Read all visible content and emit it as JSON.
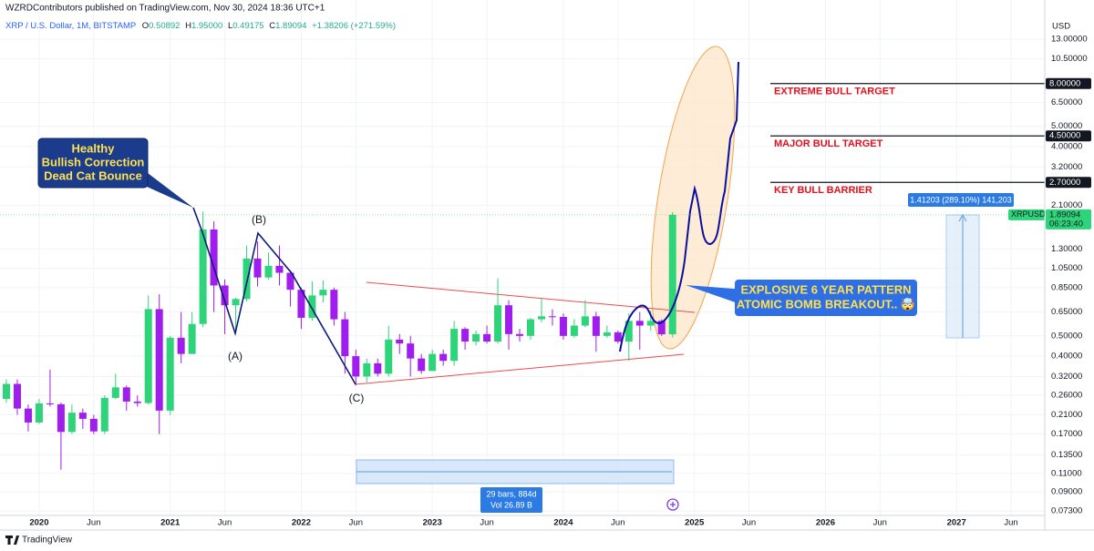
{
  "header": {
    "publisher": "WZRDContributors published on TradingView.com, Nov 30, 2024 18:36 UTC+1",
    "symbol": "XRP / U.S. Dollar, 1M, BITSTAMP",
    "ohlc": [
      [
        "O",
        "0.50892"
      ],
      [
        "H",
        "1.95000"
      ],
      [
        "L",
        "0.49175"
      ],
      [
        "C",
        "1.89094"
      ]
    ],
    "change": "+1.38206 (+271.59%)"
  },
  "chart_data": {
    "type": "candlestick",
    "currency": "USD",
    "x": [
      "2019-10",
      "2019-11",
      "2019-12",
      "2020-01",
      "2020-02",
      "2020-03",
      "2020-04",
      "2020-05",
      "2020-06",
      "2020-07",
      "2020-08",
      "2020-09",
      "2020-10",
      "2020-11",
      "2020-12",
      "2021-01",
      "2021-02",
      "2021-03",
      "2021-04",
      "2021-05",
      "2021-06",
      "2021-07",
      "2021-08",
      "2021-09",
      "2021-10",
      "2021-11",
      "2021-12",
      "2022-01",
      "2022-02",
      "2022-03",
      "2022-04",
      "2022-05",
      "2022-06",
      "2022-07",
      "2022-08",
      "2022-09",
      "2022-10",
      "2022-11",
      "2022-12",
      "2023-01",
      "2023-02",
      "2023-03",
      "2023-04",
      "2023-05",
      "2023-06",
      "2023-07",
      "2023-08",
      "2023-09",
      "2023-10",
      "2023-11",
      "2023-12",
      "2024-01",
      "2024-02",
      "2024-03",
      "2024-04",
      "2024-05",
      "2024-06",
      "2024-07",
      "2024-08",
      "2024-09",
      "2024-10",
      "2024-11"
    ],
    "open": [
      0.25,
      0.295,
      0.225,
      0.193,
      0.238,
      0.236,
      0.174,
      0.215,
      0.201,
      0.175,
      0.253,
      0.284,
      0.243,
      0.239,
      0.671,
      0.22,
      0.49,
      0.41,
      0.57,
      1.61,
      0.87,
      0.7,
      0.75,
      1.17,
      0.95,
      1.08,
      1.0,
      0.83,
      0.61,
      0.78,
      0.83,
      0.6,
      0.4,
      0.32,
      0.37,
      0.33,
      0.48,
      0.46,
      0.39,
      0.34,
      0.41,
      0.38,
      0.54,
      0.47,
      0.51,
      0.47,
      0.7,
      0.51,
      0.5,
      0.6,
      0.62,
      0.616,
      0.5,
      0.56,
      0.62,
      0.5,
      0.52,
      0.47,
      0.59,
      0.56,
      0.59,
      0.50892
    ],
    "high": [
      0.31,
      0.31,
      0.235,
      0.25,
      0.345,
      0.24,
      0.235,
      0.225,
      0.21,
      0.26,
      0.33,
      0.29,
      0.26,
      0.78,
      0.79,
      0.5,
      0.65,
      0.65,
      1.96,
      1.76,
      0.93,
      0.76,
      1.35,
      1.41,
      1.25,
      1.35,
      1.03,
      0.85,
      0.91,
      0.92,
      0.85,
      0.65,
      0.43,
      0.39,
      0.39,
      0.56,
      0.51,
      0.5,
      0.41,
      0.43,
      0.43,
      0.59,
      0.55,
      0.53,
      0.56,
      0.94,
      0.74,
      0.54,
      0.61,
      0.75,
      0.67,
      0.64,
      0.6,
      0.74,
      0.65,
      0.56,
      0.53,
      0.64,
      0.65,
      0.66,
      0.6,
      1.95
    ],
    "low": [
      0.24,
      0.21,
      0.175,
      0.19,
      0.23,
      0.115,
      0.17,
      0.18,
      0.17,
      0.17,
      0.25,
      0.22,
      0.23,
      0.235,
      0.17,
      0.21,
      0.37,
      0.41,
      0.55,
      0.65,
      0.51,
      0.51,
      0.73,
      0.86,
      0.93,
      0.87,
      0.69,
      0.54,
      0.59,
      0.72,
      0.56,
      0.33,
      0.29,
      0.3,
      0.32,
      0.32,
      0.41,
      0.32,
      0.33,
      0.34,
      0.36,
      0.36,
      0.43,
      0.45,
      0.46,
      0.46,
      0.43,
      0.47,
      0.48,
      0.58,
      0.56,
      0.48,
      0.49,
      0.55,
      0.42,
      0.49,
      0.46,
      0.38,
      0.43,
      0.53,
      0.5,
      0.49175
    ],
    "close": [
      0.295,
      0.225,
      0.193,
      0.238,
      0.236,
      0.174,
      0.215,
      0.201,
      0.175,
      0.253,
      0.284,
      0.243,
      0.239,
      0.671,
      0.22,
      0.49,
      0.41,
      0.57,
      1.61,
      0.87,
      0.7,
      0.75,
      1.17,
      0.95,
      1.08,
      1.0,
      0.83,
      0.61,
      0.78,
      0.83,
      0.6,
      0.4,
      0.32,
      0.37,
      0.33,
      0.48,
      0.46,
      0.39,
      0.34,
      0.41,
      0.38,
      0.54,
      0.47,
      0.51,
      0.47,
      0.7,
      0.51,
      0.5,
      0.6,
      0.62,
      0.616,
      0.5,
      0.56,
      0.62,
      0.5,
      0.52,
      0.47,
      0.59,
      0.56,
      0.59,
      0.50892,
      1.89094
    ],
    "up_color": "#2ed47a",
    "down_color": "#9f1ded",
    "log_scale": true,
    "grid": true,
    "ylim": [
      0.0695,
      16.4
    ],
    "yticks": [
      {
        "value": 13,
        "label": "13.00000"
      },
      {
        "value": 10.5,
        "label": "10.50000"
      },
      {
        "value": 6.5,
        "label": "6.50000"
      },
      {
        "value": 5,
        "label": "5.00000"
      },
      {
        "value": 4,
        "label": "4.00000"
      },
      {
        "value": 3.2,
        "label": "3.20000"
      },
      {
        "value": 2.1,
        "label": "2.10000"
      },
      {
        "value": 1.3,
        "label": "1.30000"
      },
      {
        "value": 1.05,
        "label": "1.05000"
      },
      {
        "value": 0.85,
        "label": "0.85000"
      },
      {
        "value": 0.65,
        "label": "0.65000"
      },
      {
        "value": 0.5,
        "label": "0.50000"
      },
      {
        "value": 0.4,
        "label": "0.40000"
      },
      {
        "value": 0.32,
        "label": "0.32000"
      },
      {
        "value": 0.26,
        "label": "0.26000"
      },
      {
        "value": 0.21,
        "label": "0.21000"
      },
      {
        "value": 0.17,
        "label": "0.17000"
      },
      {
        "value": 0.135,
        "label": "0.13500"
      },
      {
        "value": 0.11,
        "label": "0.11000"
      },
      {
        "value": 0.09,
        "label": "0.09000"
      },
      {
        "value": 0.073,
        "label": "0.07300"
      }
    ],
    "xlim": [
      "2019-10",
      "2027-09"
    ],
    "xticks": [
      {
        "value": "2020-01",
        "label": "2020"
      },
      {
        "value": "2020-06",
        "label": "Jun"
      },
      {
        "value": "2021-01",
        "label": "2021"
      },
      {
        "value": "2021-06",
        "label": "Jun"
      },
      {
        "value": "2022-01",
        "label": "2022"
      },
      {
        "value": "2022-06",
        "label": "Jun"
      },
      {
        "value": "2023-01",
        "label": "2023"
      },
      {
        "value": "2023-06",
        "label": "Jun"
      },
      {
        "value": "2024-01",
        "label": "2024"
      },
      {
        "value": "2024-06",
        "label": "Jun"
      },
      {
        "value": "2025-01",
        "label": "2025"
      },
      {
        "value": "2025-06",
        "label": "Jun"
      },
      {
        "value": "2026-01",
        "label": "2026"
      },
      {
        "value": "2026-06",
        "label": "Jun"
      },
      {
        "value": "2027-01",
        "label": "2027"
      },
      {
        "value": "2027-06",
        "label": "Jun"
      }
    ],
    "levels": [
      {
        "value": 8,
        "label": "8.00000",
        "name": "EXTREME BULL TARGET"
      },
      {
        "value": 4.5,
        "label": "4.50000",
        "name": "MAJOR BULL TARGET"
      },
      {
        "value": 2.7,
        "label": "2.70000",
        "name": "KEY BULL BARRIER"
      }
    ],
    "last_price": {
      "symbol": "XRPUSD",
      "value": 1.89094,
      "label": "1.89094",
      "countdown": "06:23:40"
    },
    "annotations": {
      "correction": [
        "Healthy",
        "Bullish Correction",
        "Dead Cat Bounce"
      ],
      "waves": [
        "(A)",
        "(B)",
        "(C)"
      ],
      "breakout": [
        "EXPLOSIVE 6 YEAR PATTERN",
        "ATOMIC BOMB BREAKOUT.. 🤯"
      ]
    },
    "measure": "1.41203 (289.10%) 141,203",
    "range": [
      "29 bars, 884d",
      "Vol 26.89 B"
    ]
  },
  "footer": {
    "brand": "TradingView"
  }
}
